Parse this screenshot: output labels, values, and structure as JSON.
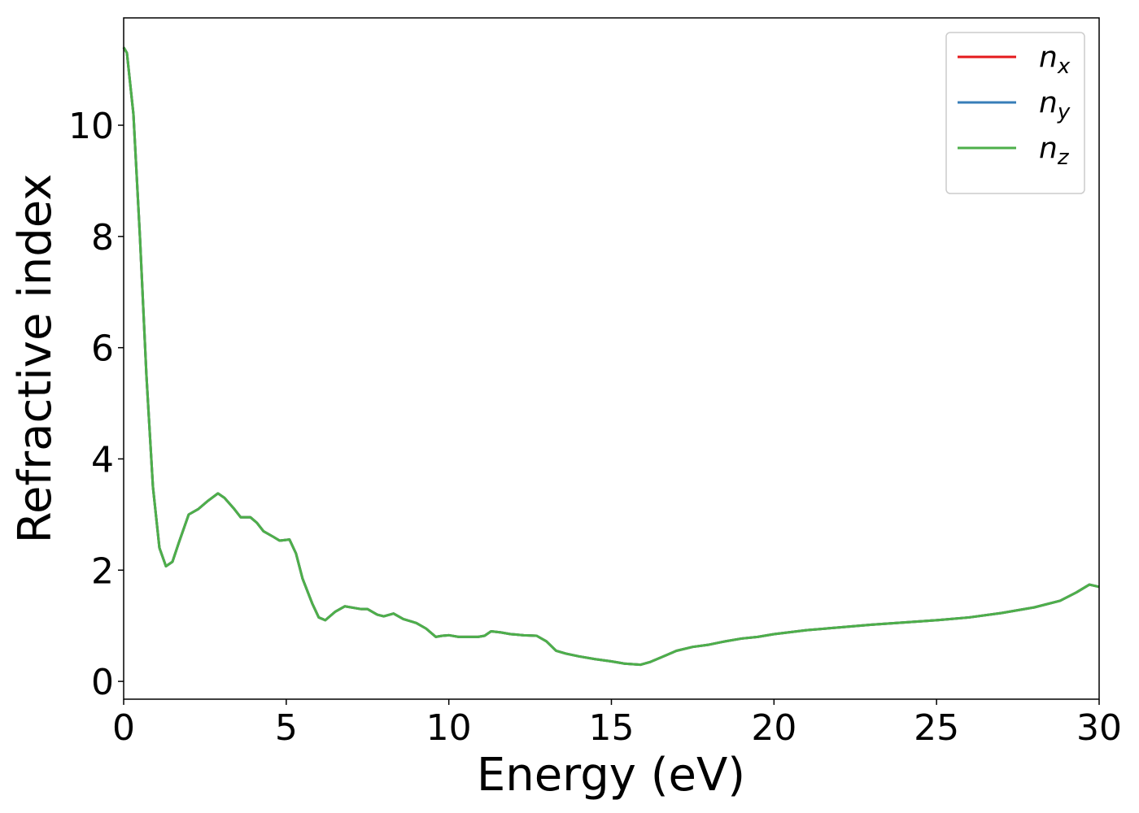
{
  "chart_data": {
    "type": "line",
    "xlabel": "Energy (eV)",
    "ylabel": "Refractive index",
    "xlim": [
      0,
      30
    ],
    "xticks": [
      0,
      5,
      10,
      15,
      20,
      25,
      30
    ],
    "ylim": [
      -0.32,
      11.93
    ],
    "yticks": [
      0,
      2,
      4,
      6,
      8,
      10
    ],
    "legend": "upper right",
    "grid": false,
    "x": [
      0,
      0.1,
      0.3,
      0.5,
      0.7,
      0.9,
      1.1,
      1.3,
      1.5,
      1.7,
      2.0,
      2.3,
      2.6,
      2.9,
      3.1,
      3.4,
      3.6,
      3.9,
      4.1,
      4.3,
      4.6,
      4.8,
      5.1,
      5.3,
      5.5,
      5.8,
      6.0,
      6.2,
      6.5,
      6.8,
      7.1,
      7.3,
      7.5,
      7.8,
      8.0,
      8.3,
      8.6,
      9.0,
      9.3,
      9.6,
      9.8,
      10.0,
      10.3,
      10.6,
      10.9,
      11.1,
      11.3,
      11.6,
      11.9,
      12.3,
      12.7,
      13.0,
      13.3,
      13.6,
      14.0,
      14.5,
      15.0,
      15.4,
      15.9,
      16.2,
      16.6,
      17.0,
      17.5,
      18.0,
      18.5,
      19.0,
      19.5,
      20.0,
      21.0,
      22.0,
      23.0,
      24.0,
      25.0,
      26.0,
      27.0,
      28.0,
      28.8,
      29.3,
      29.7,
      30.0
    ],
    "series": [
      {
        "name": "nx",
        "color": "#e41a1c",
        "values": [
          11.4,
          11.3,
          10.2,
          8.0,
          5.5,
          3.5,
          2.4,
          2.07,
          2.15,
          2.5,
          3.0,
          3.1,
          3.25,
          3.38,
          3.3,
          3.1,
          2.95,
          2.95,
          2.85,
          2.7,
          2.6,
          2.53,
          2.55,
          2.3,
          1.85,
          1.4,
          1.15,
          1.1,
          1.25,
          1.35,
          1.32,
          1.3,
          1.3,
          1.2,
          1.17,
          1.22,
          1.12,
          1.05,
          0.95,
          0.8,
          0.82,
          0.83,
          0.8,
          0.8,
          0.8,
          0.82,
          0.9,
          0.88,
          0.85,
          0.83,
          0.82,
          0.72,
          0.55,
          0.5,
          0.45,
          0.4,
          0.36,
          0.32,
          0.3,
          0.35,
          0.45,
          0.55,
          0.62,
          0.66,
          0.72,
          0.77,
          0.8,
          0.85,
          0.92,
          0.97,
          1.02,
          1.06,
          1.1,
          1.15,
          1.23,
          1.33,
          1.45,
          1.6,
          1.74,
          1.7
        ]
      },
      {
        "name": "ny",
        "color": "#377eb8",
        "values": [
          11.4,
          11.3,
          10.2,
          8.0,
          5.5,
          3.5,
          2.4,
          2.07,
          2.15,
          2.5,
          3.0,
          3.1,
          3.25,
          3.38,
          3.3,
          3.1,
          2.95,
          2.95,
          2.85,
          2.7,
          2.6,
          2.53,
          2.55,
          2.3,
          1.85,
          1.4,
          1.15,
          1.1,
          1.25,
          1.35,
          1.32,
          1.3,
          1.3,
          1.2,
          1.17,
          1.22,
          1.12,
          1.05,
          0.95,
          0.8,
          0.82,
          0.83,
          0.8,
          0.8,
          0.8,
          0.82,
          0.9,
          0.88,
          0.85,
          0.83,
          0.82,
          0.72,
          0.55,
          0.5,
          0.45,
          0.4,
          0.36,
          0.32,
          0.3,
          0.35,
          0.45,
          0.55,
          0.62,
          0.66,
          0.72,
          0.77,
          0.8,
          0.85,
          0.92,
          0.97,
          1.02,
          1.06,
          1.1,
          1.15,
          1.23,
          1.33,
          1.45,
          1.6,
          1.74,
          1.7
        ]
      },
      {
        "name": "nz",
        "color": "#4daf4a",
        "values": [
          11.4,
          11.3,
          10.2,
          8.0,
          5.5,
          3.5,
          2.4,
          2.07,
          2.15,
          2.5,
          3.0,
          3.1,
          3.25,
          3.38,
          3.3,
          3.1,
          2.95,
          2.95,
          2.85,
          2.7,
          2.6,
          2.53,
          2.55,
          2.3,
          1.85,
          1.4,
          1.15,
          1.1,
          1.25,
          1.35,
          1.32,
          1.3,
          1.3,
          1.2,
          1.17,
          1.22,
          1.12,
          1.05,
          0.95,
          0.8,
          0.82,
          0.83,
          0.8,
          0.8,
          0.8,
          0.82,
          0.9,
          0.88,
          0.85,
          0.83,
          0.82,
          0.72,
          0.55,
          0.5,
          0.45,
          0.4,
          0.36,
          0.32,
          0.3,
          0.35,
          0.45,
          0.55,
          0.62,
          0.66,
          0.72,
          0.77,
          0.8,
          0.85,
          0.92,
          0.97,
          1.02,
          1.06,
          1.1,
          1.15,
          1.23,
          1.33,
          1.45,
          1.6,
          1.74,
          1.7
        ]
      }
    ]
  }
}
